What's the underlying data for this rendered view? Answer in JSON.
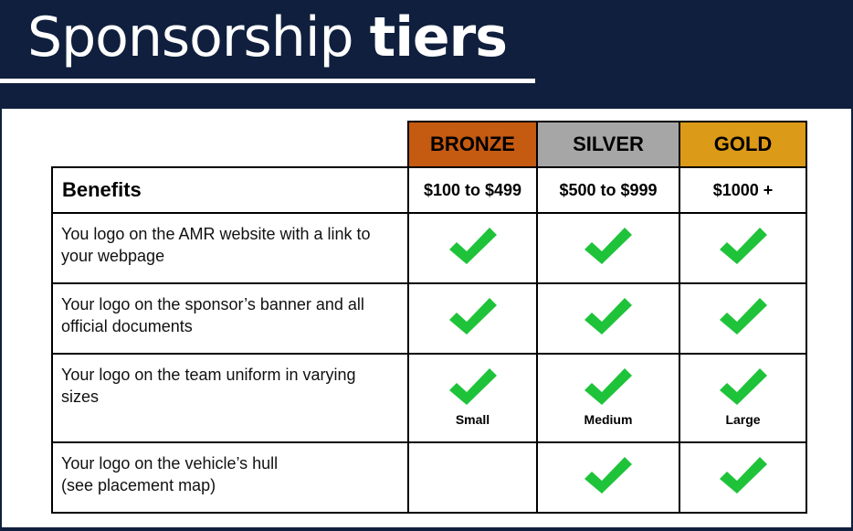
{
  "header": {
    "title_regular": "Sponsorship ",
    "title_bold": "tiers"
  },
  "table": {
    "tiers": [
      {
        "label": "BRONZE",
        "price": "$100 to $499",
        "color": "#c55a11"
      },
      {
        "label": "SILVER",
        "price": "$500  to  $999",
        "color": "#a6a6a6"
      },
      {
        "label": "GOLD",
        "price": "$1000 +",
        "color": "#db9a17"
      }
    ],
    "benefits_header": "Benefits",
    "rows": [
      {
        "line1": "You logo on the AMR website with a link to",
        "line2": "your webpage",
        "checks": [
          true,
          true,
          true
        ],
        "sizes": [
          "",
          "",
          ""
        ]
      },
      {
        "line1": "Your logo on the sponsor’s banner and all",
        "line2": "official documents",
        "checks": [
          true,
          true,
          true
        ],
        "sizes": [
          "",
          "",
          ""
        ]
      },
      {
        "line1": "Your logo on the team uniform in varying",
        "line2": "sizes",
        "checks": [
          true,
          true,
          true
        ],
        "sizes": [
          "Small",
          "Medium",
          "Large"
        ]
      },
      {
        "line1": "Your logo on the vehicle’s hull",
        "line2": "(see placement map)",
        "checks": [
          false,
          true,
          true
        ],
        "sizes": [
          "",
          "",
          ""
        ]
      }
    ],
    "check_color": "#1ec33a",
    "check_icon": "checkmark-icon"
  }
}
